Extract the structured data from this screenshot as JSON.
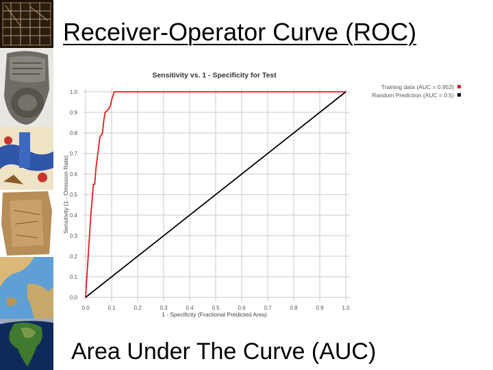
{
  "slide": {
    "title": "Receiver-Operator Curve (ROC)",
    "footer": "Area Under The Curve (AUC)"
  },
  "colors": {
    "training": "#e01b1b",
    "random": "#000000",
    "grid": "#c9c9c9"
  },
  "chart_data": {
    "type": "line",
    "title": "Sensitivity vs. 1 - Specificity for Test",
    "xlabel": "1 - Specificity (Fractional Predicted Area)",
    "ylabel": "Sensitivity (1 - Omission Rate)",
    "xlim": [
      0,
      1
    ],
    "ylim": [
      0,
      1
    ],
    "xticks": [
      "0.0",
      "0.1",
      "0.2",
      "0.3",
      "0.4",
      "0.5",
      "0.6",
      "0.7",
      "0.8",
      "0.9",
      "1.0"
    ],
    "yticks": [
      "0.0",
      "0.1",
      "0.2",
      "0.3",
      "0.4",
      "0.5",
      "0.6",
      "0.7",
      "0.8",
      "0.9",
      "1.0"
    ],
    "grid": true,
    "legend_position": "top-right",
    "series": [
      {
        "name": "Training data (AUC = 0.953)",
        "color": "#e01b1b",
        "points": [
          [
            0.0,
            0.0
          ],
          [
            0.01,
            0.2
          ],
          [
            0.02,
            0.4
          ],
          [
            0.03,
            0.55
          ],
          [
            0.035,
            0.55
          ],
          [
            0.04,
            0.63
          ],
          [
            0.045,
            0.68
          ],
          [
            0.05,
            0.73
          ],
          [
            0.055,
            0.78
          ],
          [
            0.065,
            0.8
          ],
          [
            0.07,
            0.86
          ],
          [
            0.075,
            0.9
          ],
          [
            0.085,
            0.91
          ],
          [
            0.095,
            0.93
          ],
          [
            0.1,
            0.96
          ],
          [
            0.11,
            1.0
          ],
          [
            1.0,
            1.0
          ]
        ]
      },
      {
        "name": "Random Prediction (AUC = 0.5)",
        "color": "#000000",
        "points": [
          [
            0.0,
            0.0
          ],
          [
            1.0,
            1.0
          ]
        ]
      }
    ]
  }
}
